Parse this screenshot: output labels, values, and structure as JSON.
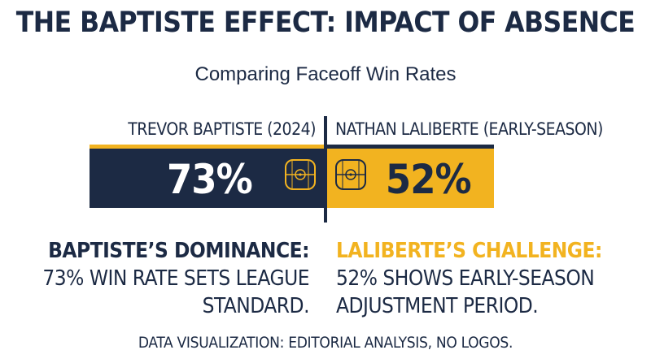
{
  "title": "THE BAPTISTE EFFECT: IMPACT OF ABSENCE",
  "subtitle": "Comparing Faceoff Win Rates",
  "colors": {
    "navy": "#1c2a44",
    "gold": "#f2b320",
    "white": "#ffffff"
  },
  "chart_data": {
    "type": "bar",
    "categories": [
      "TREVOR BAPTISTE (2024)",
      "NATHAN LALIBERTE (EARLY-SEASON)"
    ],
    "values": [
      73,
      52
    ],
    "value_labels": [
      "73%",
      "52%"
    ],
    "unit": "%",
    "ylim": [
      0,
      100
    ],
    "orientation": "horizontal-diverging",
    "grid": false,
    "icons": [
      "faceoff-rink-icon",
      "faceoff-rink-icon"
    ]
  },
  "notes": {
    "left": {
      "heading": "BAPTISTE’S DOMINANCE:",
      "line1": "73% WIN RATE SETS LEAGUE",
      "line2": "STANDARD."
    },
    "right": {
      "heading": "LALIBERTE’S CHALLENGE:",
      "line1": "52% SHOWS EARLY-SEASON",
      "line2": "ADJUSTMENT PERIOD."
    }
  },
  "footer": "DATA VISUALIZATION: EDITORIAL ANALYSIS, NO LOGOS."
}
